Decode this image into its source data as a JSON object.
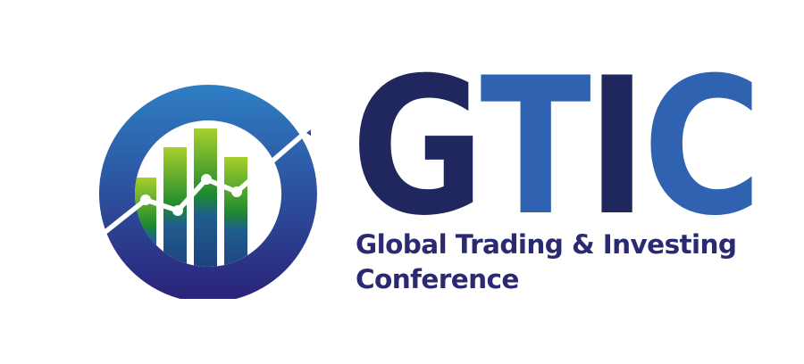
{
  "logo": {
    "acronym_letters": [
      {
        "letter": "G",
        "color": "#20275e"
      },
      {
        "letter": "T",
        "color": "#2f62b0"
      },
      {
        "letter": "I",
        "color": "#20275e"
      },
      {
        "letter": "C",
        "color": "#2f62b0"
      }
    ],
    "tagline_line1": "Global Trading & Investing",
    "tagline_line2": "Conference",
    "tagline_color": "#2a2a72",
    "icon": "chart-circle-icon",
    "colors": {
      "ring_top": "#2f7fc4",
      "ring_bottom": "#2a2278",
      "bar_top": "#a7cf2c",
      "bar_bottom": "#1d2f74",
      "arrow": "#ffffff"
    }
  }
}
